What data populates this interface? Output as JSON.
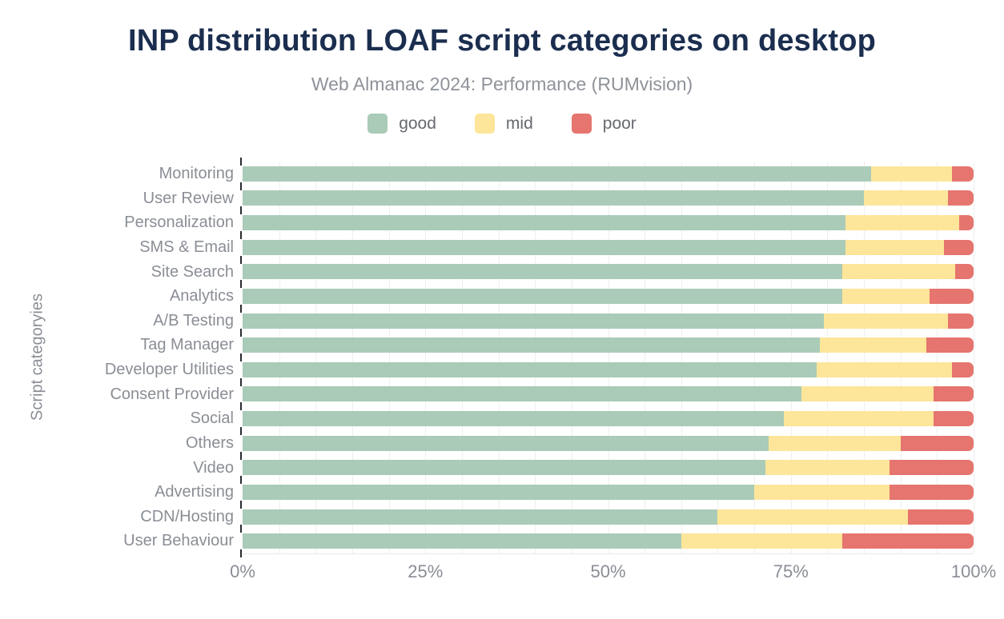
{
  "title": "INP distribution LOAF script categories on desktop",
  "subtitle": "Web Almanac 2024: Performance (RUMvision)",
  "colors": {
    "good": "#a9cbb7",
    "mid": "#fde59a",
    "poor": "#e5756e",
    "title_text": "#1b2e4f",
    "subtitle_text": "#8e9299",
    "axis_text": "#8a8e95",
    "gridline": "#efefef",
    "tick": "#2a2c30"
  },
  "legend": [
    {
      "label": "good",
      "color": "#a9cbb7"
    },
    {
      "label": "mid",
      "color": "#fde59a"
    },
    {
      "label": "poor",
      "color": "#e5756e"
    }
  ],
  "chart_data": {
    "type": "bar",
    "orientation": "horizontal",
    "stacked": true,
    "title": "INP distribution LOAF script categories on desktop",
    "subtitle": "Web Almanac 2024: Performance (RUMvision)",
    "xlabel": "",
    "ylabel": "Script categoryies",
    "xlim": [
      0,
      100
    ],
    "x_ticks": [
      "0%",
      "25%",
      "50%",
      "75%",
      "100%"
    ],
    "x_tick_values": [
      0,
      25,
      50,
      75,
      100
    ],
    "minor_grid_step_percent": 5,
    "legend_position": "top",
    "grid": "minor-vertical",
    "categories": [
      "Monitoring",
      "User Review",
      "Personalization",
      "SMS & Email",
      "Site Search",
      "Analytics",
      "A/B Testing",
      "Tag Manager",
      "Developer Utilities",
      "Consent Provider",
      "Social",
      "Others",
      "Video",
      "Advertising",
      "CDN/Hosting",
      "User Behaviour"
    ],
    "series": [
      {
        "name": "good",
        "color_key": "good",
        "values": [
          86,
          85,
          82.5,
          82.5,
          82,
          82,
          79.5,
          79,
          78.5,
          76.5,
          74,
          72,
          71.5,
          70,
          65,
          60
        ]
      },
      {
        "name": "mid",
        "color_key": "mid",
        "values": [
          11,
          11.5,
          15.5,
          13.5,
          15.5,
          12,
          17,
          14.5,
          18.5,
          18,
          20.5,
          18,
          17,
          18.5,
          26,
          22
        ]
      },
      {
        "name": "poor",
        "color_key": "poor",
        "values": [
          3,
          3.5,
          2,
          4,
          2.5,
          6,
          3.5,
          6.5,
          3,
          5.5,
          5.5,
          10,
          11.5,
          11.5,
          9,
          18
        ]
      }
    ]
  }
}
